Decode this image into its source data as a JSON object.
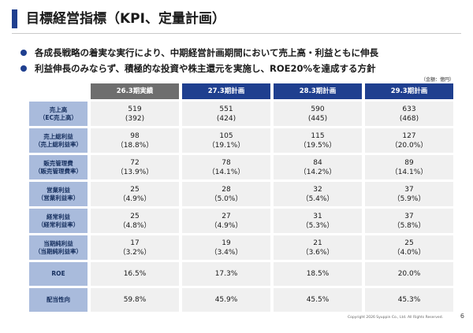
{
  "title": "目標経営指標（KPI、定量計画）",
  "bullets": [
    "各成長戦略の着実な実行により、中期経営計画期間において売上高・利益ともに伸長",
    "利益伸長のみならず、積極的な投資や株主還元を実施し、ROE20%を達成する方針"
  ],
  "unit_note": "（金額：億円）",
  "table": {
    "columns": [
      "26.3期実績",
      "27.3期計画",
      "28.3期計画",
      "29.3期計画"
    ],
    "rows": [
      {
        "label": [
          "売上高",
          "（EC売上高）"
        ],
        "values": [
          [
            "519",
            "(392)"
          ],
          [
            "551",
            "(424)"
          ],
          [
            "590",
            "(445)"
          ],
          [
            "633",
            "(468)"
          ]
        ]
      },
      {
        "label": [
          "売上総利益",
          "（売上総利益率）"
        ],
        "values": [
          [
            "98",
            "（18.8%）"
          ],
          [
            "105",
            "（19.1%）"
          ],
          [
            "115",
            "（19.5%）"
          ],
          [
            "127",
            "（20.0%）"
          ]
        ]
      },
      {
        "label": [
          "販売管理費",
          "（販売管理費率）"
        ],
        "values": [
          [
            "72",
            "（13.9%）"
          ],
          [
            "78",
            "（14.1%）"
          ],
          [
            "84",
            "（14.2%）"
          ],
          [
            "89",
            "（14.1%）"
          ]
        ]
      },
      {
        "label": [
          "営業利益",
          "（営業利益率）"
        ],
        "values": [
          [
            "25",
            "（4.9%）"
          ],
          [
            "28",
            "（5.0%）"
          ],
          [
            "32",
            "（5.4%）"
          ],
          [
            "37",
            "（5.9%）"
          ]
        ]
      },
      {
        "label": [
          "経常利益",
          "（経常利益率）"
        ],
        "values": [
          [
            "25",
            "（4.8%）"
          ],
          [
            "27",
            "（4.9%）"
          ],
          [
            "31",
            "（5.3%）"
          ],
          [
            "37",
            "（5.8%）"
          ]
        ]
      },
      {
        "label": [
          "当期純利益",
          "（当期純利益率）"
        ],
        "values": [
          [
            "17",
            "（3.2%）"
          ],
          [
            "19",
            "（3.4%）"
          ],
          [
            "21",
            "（3.6%）"
          ],
          [
            "25",
            "（4.0%）"
          ]
        ]
      },
      {
        "label": [
          "ROE"
        ],
        "values": [
          [
            "16.5%"
          ],
          [
            "17.3%"
          ],
          [
            "18.5%"
          ],
          [
            "20.0%"
          ]
        ]
      },
      {
        "label": [
          "配当性向"
        ],
        "values": [
          [
            "59.8%"
          ],
          [
            "45.9%"
          ],
          [
            "45.5%"
          ],
          [
            "45.3%"
          ]
        ]
      }
    ]
  },
  "footer": "Copyright 2026 Syuppin Co., Ltd. All Rights Reserved.",
  "page_number": "6",
  "colors": {
    "accent": "#1f3f8f",
    "label_bg": "#a9bbdc",
    "actual_header": "#6e6e6e",
    "value_bg": "#f0f0f0"
  }
}
